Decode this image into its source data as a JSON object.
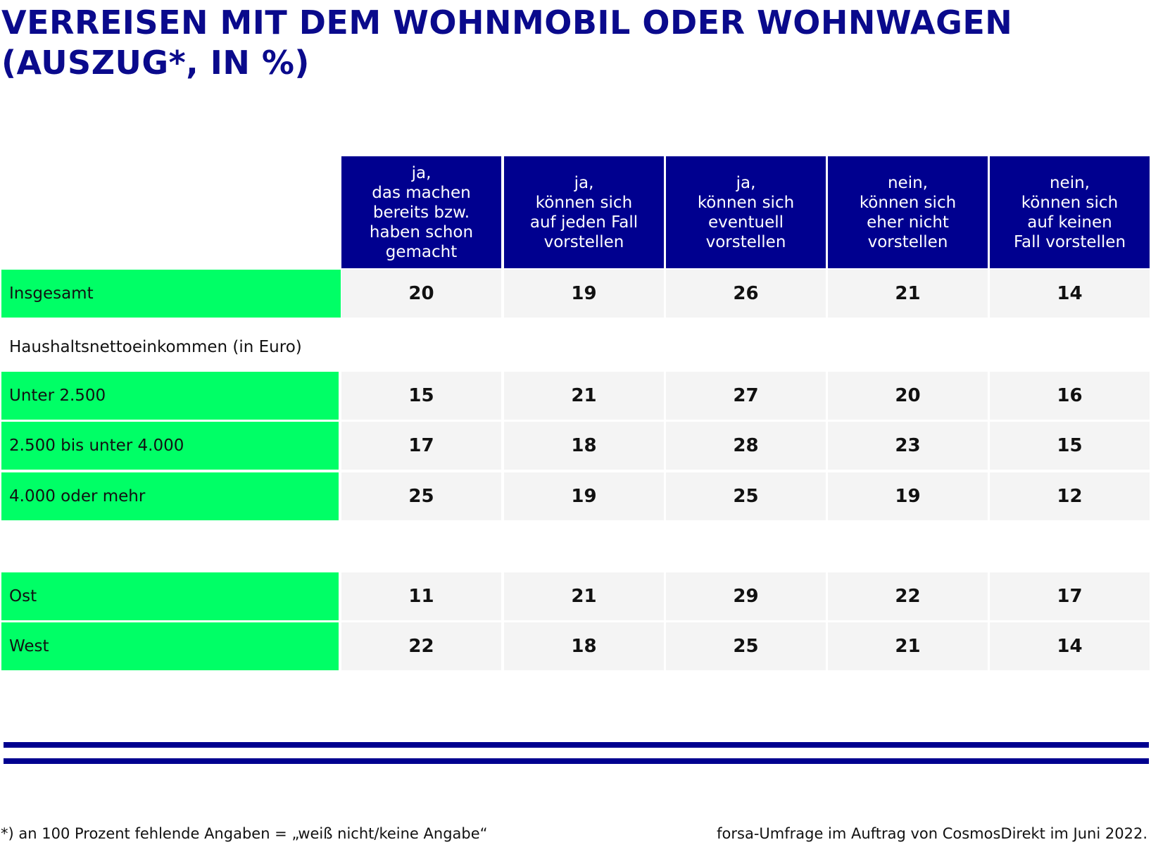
{
  "title": {
    "line1": "VERREISEN MIT DEM WOHNMOBIL ODER WOHNWAGEN",
    "line2": "(AUSZUG*, IN %)"
  },
  "chart_data": {
    "type": "table",
    "title": "VERREISEN MIT DEM WOHNMOBIL ODER WOHNWAGEN (AUSZUG*, IN %)",
    "columns": [
      [
        "ja,",
        "das machen",
        "bereits bzw.",
        "haben schon",
        "gemacht"
      ],
      [
        "ja,",
        "können sich",
        "auf jeden Fall",
        "vorstellen"
      ],
      [
        "ja,",
        "können sich",
        "eventuell",
        "vorstellen"
      ],
      [
        "nein,",
        "können sich",
        "eher nicht",
        "vorstellen"
      ],
      [
        "nein,",
        "können sich",
        "auf keinen",
        "Fall vorstellen"
      ]
    ],
    "section_label": "Haushaltsnettoeinkommen (in Euro)",
    "rows": [
      {
        "label": "Insgesamt",
        "values": [
          20,
          19,
          26,
          21,
          14
        ]
      },
      {
        "label": "Unter 2.500",
        "values": [
          15,
          21,
          27,
          20,
          16
        ]
      },
      {
        "label": "2.500 bis unter 4.000",
        "values": [
          17,
          18,
          28,
          23,
          15
        ]
      },
      {
        "label": "4.000 oder mehr",
        "values": [
          25,
          19,
          25,
          19,
          12
        ]
      },
      {
        "label": "Ost",
        "values": [
          11,
          21,
          29,
          22,
          17
        ]
      },
      {
        "label": "West",
        "values": [
          22,
          18,
          25,
          21,
          14
        ]
      }
    ]
  },
  "footer": {
    "note": "*) an 100 Prozent fehlende Angaben = „weiß nicht/keine Angabe“",
    "source": "forsa-Umfrage im Auftrag von CosmosDirekt im Juni 2022."
  },
  "colors": {
    "header_bg": "#00008f",
    "label_bg": "#00ff66",
    "cell_bg": "#f4f4f4",
    "title_color": "#0a0a8c"
  }
}
